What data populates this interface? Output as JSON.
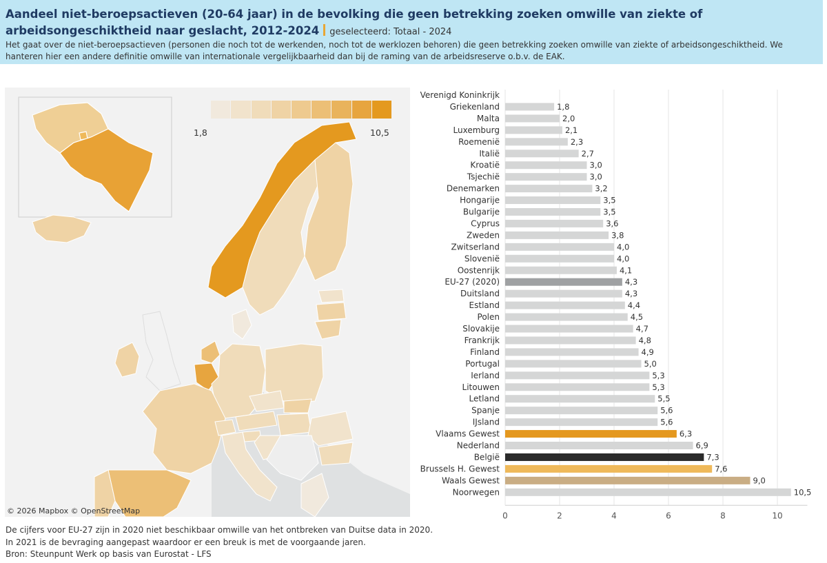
{
  "header": {
    "title": "Aandeel niet-beroepsactieven (20-64 jaar) in de bevolking die geen betrekking zoeken omwille van ziekte of arbeidsongeschiktheid naar geslacht, 2012-2024",
    "selected": "geselecteerd: Totaal  - 2024",
    "subtitle": "Het gaat over de niet-beroepsactieven (personen die noch tot de werkenden, noch tot de werklozen behoren) die geen betrekking zoeken omwille van ziekte of arbeidsongeschiktheid. We hanteren hier een andere definitie omwille van internationale vergelijkbaarheid dan bij de raming van de arbeidsreserve o.b.v. de EAK."
  },
  "map": {
    "legend_min": "1,8",
    "legend_max": "10,5",
    "legend_colors": [
      "#f2f2f2",
      "#f1e9dd",
      "#f1e3cc",
      "#f0dcba",
      "#efd3a5",
      "#eeca8f",
      "#ecbf76",
      "#e9b35c",
      "#e7a53f",
      "#e4991f"
    ],
    "credit": "© 2026 Mapbox © OpenStreetMap"
  },
  "chart_data": {
    "type": "bar",
    "orientation": "horizontal",
    "categories": [
      "Verenigd Koninkrijk",
      "Griekenland",
      "Malta",
      "Luxemburg",
      "Roemenië",
      "Italië",
      "Kroatië",
      "Tsjechië",
      "Denemarken",
      "Hongarije",
      "Bulgarije",
      "Cyprus",
      "Zweden",
      "Zwitserland",
      "Slovenië",
      "Oostenrijk",
      "EU-27 (2020)",
      "Duitsland",
      "Estland",
      "Polen",
      "Slovakije",
      "Frankrijk",
      "Finland",
      "Portugal",
      "Ierland",
      "Litouwen",
      "Letland",
      "Spanje",
      "IJsland",
      "Vlaams Gewest",
      "Nederland",
      "België",
      "Brussels H. Gewest",
      "Waals Gewest",
      "Noorwegen"
    ],
    "values": [
      null,
      1.8,
      2.0,
      2.1,
      2.3,
      2.7,
      3.0,
      3.0,
      3.2,
      3.5,
      3.5,
      3.6,
      3.8,
      4.0,
      4.0,
      4.1,
      4.3,
      4.3,
      4.4,
      4.5,
      4.7,
      4.8,
      4.9,
      5.0,
      5.3,
      5.3,
      5.5,
      5.6,
      5.6,
      6.3,
      6.9,
      7.3,
      7.6,
      9.0,
      10.5
    ],
    "labels": [
      "",
      "1,8",
      "2,0",
      "2,1",
      "2,3",
      "2,7",
      "3,0",
      "3,0",
      "3,2",
      "3,5",
      "3,5",
      "3,6",
      "3,8",
      "4,0",
      "4,0",
      "4,1",
      "4,3",
      "4,3",
      "4,4",
      "4,5",
      "4,7",
      "4,8",
      "4,9",
      "5,0",
      "5,3",
      "5,3",
      "5,5",
      "5,6",
      "5,6",
      "6,3",
      "6,9",
      "7,3",
      "7,6",
      "9,0",
      "10,5"
    ],
    "bar_colors": {
      "default": "#d5d6d6",
      "EU-27 (2020)": "#9fa1a3",
      "Vlaams Gewest": "#e4981f",
      "België": "#2b2b2b",
      "Brussels H. Gewest": "#efb95a",
      "Waals Gewest": "#c9ad84"
    },
    "xlim": [
      0,
      11
    ],
    "xticks": [
      0,
      2,
      4,
      6,
      8,
      10
    ],
    "grid": true
  },
  "footer": {
    "lines": [
      "De cijfers voor EU-27 zijn in 2020 niet beschikbaar omwille van het ontbreken van Duitse data in 2020.",
      "In 2021 is de bevraging aangepast waardoor er een breuk is met de voorgaande jaren.",
      "Bron: Steunpunt Werk op basis van Eurostat - LFS"
    ]
  }
}
